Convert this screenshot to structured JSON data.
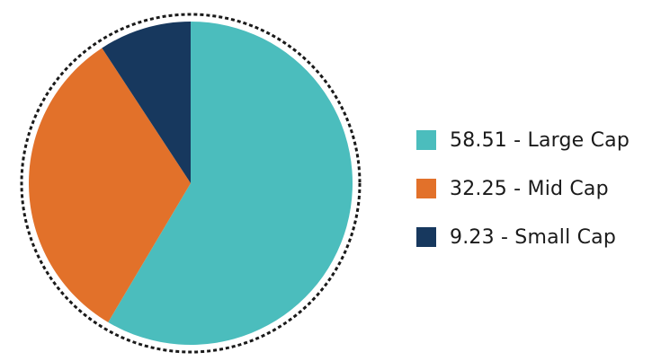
{
  "chart_data": {
    "type": "pie",
    "title": "",
    "start_angle_deg": 0,
    "direction": "clockwise",
    "legend_position": "right",
    "border": "dashed circle",
    "slices": [
      {
        "label": "58.51 - Large Cap",
        "value": 58.51,
        "color": "#4bbdbd"
      },
      {
        "label": "32.25 - Mid Cap",
        "value": 32.25,
        "color": "#e2712a"
      },
      {
        "label": "9.23 - Small Cap",
        "value": 9.23,
        "color": "#17385e"
      }
    ]
  }
}
